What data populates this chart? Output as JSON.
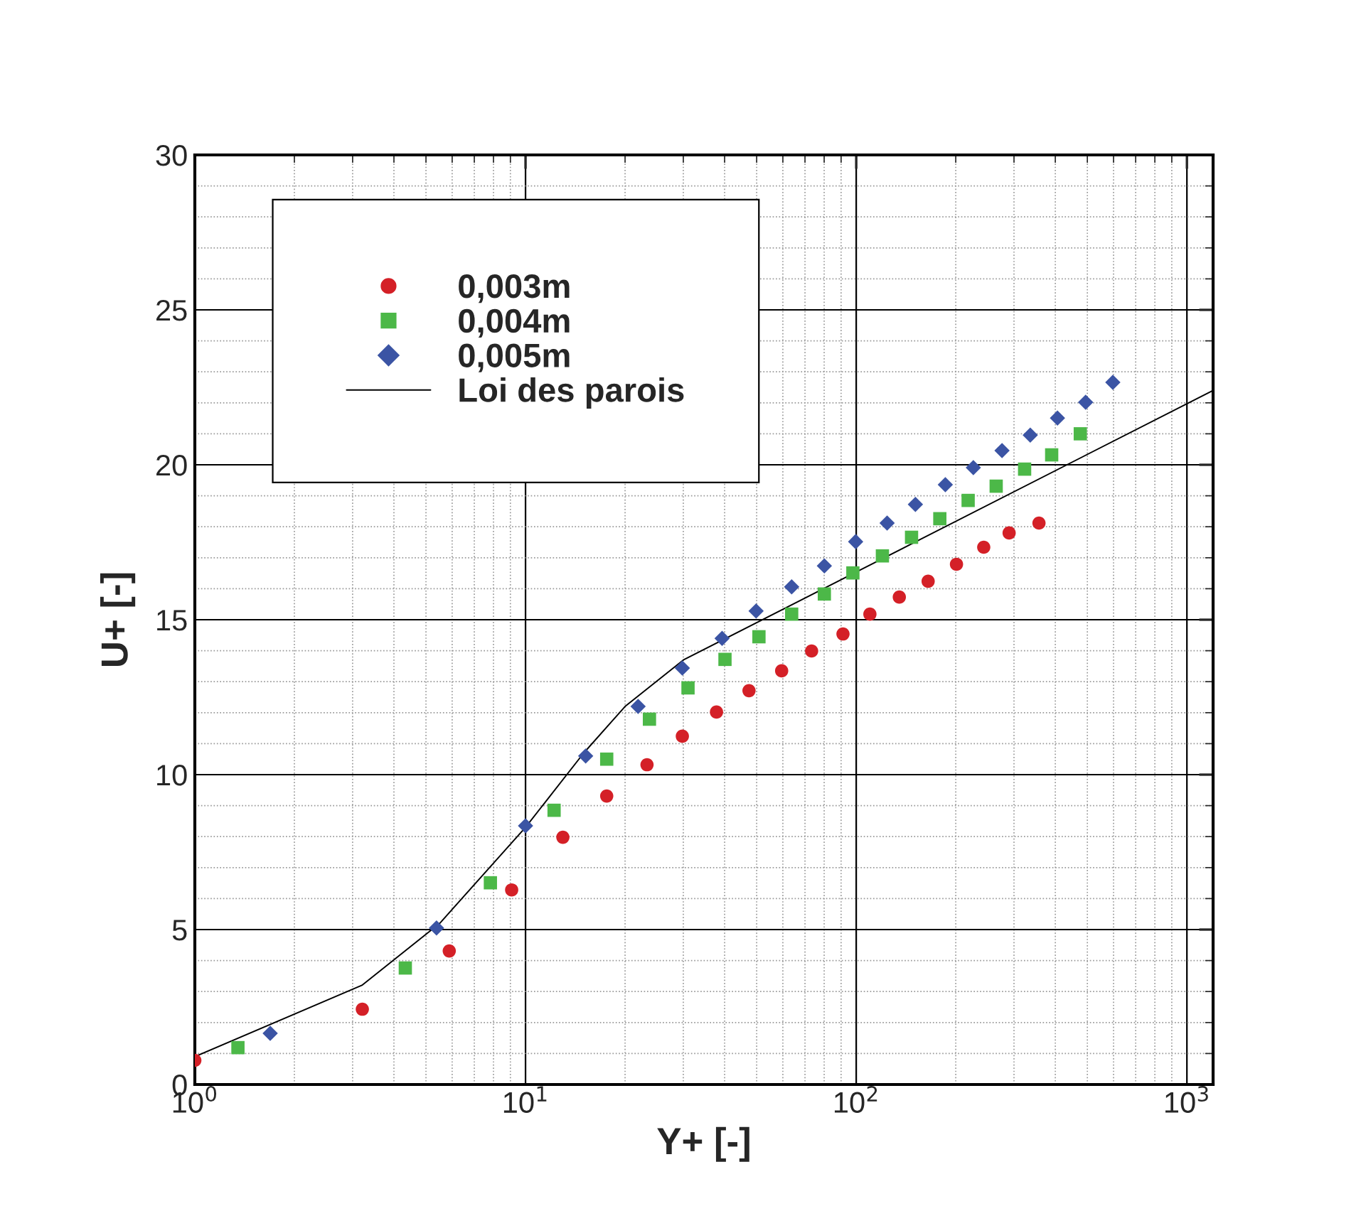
{
  "chart_data": {
    "type": "scatter",
    "xlabel": "Y+ [-]",
    "ylabel": "U+ [-]",
    "log": "x",
    "xlim": [
      1,
      1200
    ],
    "ylim": [
      0,
      30
    ],
    "xticks": [
      {
        "value": 1,
        "label": "10$^{0}$"
      },
      {
        "value": 10,
        "label": "10$^{1}$"
      },
      {
        "value": 100,
        "label": "10$^{2}$"
      },
      {
        "value": 1000,
        "label": "10$^{3}$"
      }
    ],
    "yticks": [
      0,
      5,
      10,
      15,
      20,
      25,
      30
    ],
    "grid": true,
    "legend": "top left",
    "series": [
      {
        "name": "0,003m",
        "color": "#d42027",
        "marker": "circle",
        "x": [
          1,
          3.21,
          5.88,
          9.08,
          12.97,
          17.6,
          23.3,
          29.8,
          37.8,
          47.4,
          59.5,
          73.3,
          91.2,
          110,
          135,
          165,
          201,
          243,
          290,
          357
        ],
        "values": [
          0.78,
          2.43,
          4.31,
          6.28,
          7.98,
          9.31,
          10.32,
          11.24,
          12.02,
          12.71,
          13.35,
          13.99,
          14.54,
          15.18,
          15.73,
          16.24,
          16.79,
          17.34,
          17.8,
          18.12
        ]
      },
      {
        "name": "0,004m",
        "color": "#4cb848",
        "marker": "square",
        "x": [
          1.35,
          4.33,
          7.83,
          12.2,
          17.6,
          23.7,
          31.0,
          40.1,
          50.8,
          63.8,
          80.1,
          97.7,
          120,
          147,
          179,
          218,
          265,
          323,
          390,
          476
        ],
        "values": [
          1.19,
          3.76,
          6.51,
          8.85,
          10.5,
          11.79,
          12.8,
          13.72,
          14.45,
          15.18,
          15.83,
          16.51,
          17.06,
          17.66,
          18.26,
          18.85,
          19.31,
          19.86,
          20.32,
          21.0
        ]
      },
      {
        "name": "0,005m",
        "color": "#3b54a4",
        "marker": "diamond",
        "x": [
          1.69,
          5.38,
          10,
          15.2,
          21.9,
          29.8,
          39.3,
          49.8,
          63.8,
          80.1,
          99.6,
          124,
          151,
          186,
          226,
          276,
          336,
          406,
          494,
          597
        ],
        "values": [
          1.65,
          5.05,
          8.35,
          10.6,
          12.2,
          13.44,
          14.4,
          15.28,
          16.06,
          16.74,
          17.52,
          18.12,
          18.72,
          19.36,
          19.91,
          20.46,
          20.96,
          21.51,
          22.02,
          22.66
        ]
      },
      {
        "name": "Loi des parois",
        "type": "line",
        "color": "#000000",
        "marker": "none",
        "line_style": "solid",
        "x": [
          1,
          3.2,
          5.5,
          10,
          15,
          20,
          30,
          100,
          1200
        ],
        "values": [
          0.9,
          3.2,
          5.2,
          8.3,
          10.7,
          12.2,
          13.7,
          16.54,
          22.4
        ]
      }
    ]
  }
}
